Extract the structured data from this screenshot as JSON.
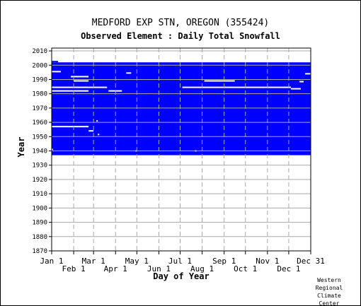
{
  "chart_data": {
    "type": "heatmap",
    "title": "MEDFORD EXP STN, OREGON   (355424)",
    "subtitle": "Observed Element : Daily Total Snowfall",
    "xlabel": "Day of Year",
    "ylabel": "Year",
    "grid": true,
    "ylim": [
      1870,
      2012
    ],
    "xlim": [
      1,
      366
    ],
    "y_ticks": [
      1870,
      1880,
      1890,
      1900,
      1910,
      1920,
      1930,
      1940,
      1950,
      1960,
      1970,
      1980,
      1990,
      2000,
      2010
    ],
    "x_ticks": [
      {
        "label": "Jan 1",
        "day": 1,
        "row": 1
      },
      {
        "label": "Feb 1",
        "day": 32,
        "row": 2
      },
      {
        "label": "Mar 1",
        "day": 60,
        "row": 1
      },
      {
        "label": "Apr 1",
        "day": 91,
        "row": 2
      },
      {
        "label": "May 1",
        "day": 121,
        "row": 1
      },
      {
        "label": "Jun 1",
        "day": 152,
        "row": 2
      },
      {
        "label": "Jul 1",
        "day": 182,
        "row": 1
      },
      {
        "label": "Aug 1",
        "day": 213,
        "row": 2
      },
      {
        "label": "Sep 1",
        "day": 244,
        "row": 1
      },
      {
        "label": "Oct 1",
        "day": 274,
        "row": 2
      },
      {
        "label": "Nov 1",
        "day": 305,
        "row": 1
      },
      {
        "label": "Dec 1",
        "day": 335,
        "row": 2
      },
      {
        "label": "Dec 31",
        "day": 366,
        "row": 1
      }
    ],
    "data_color": "#0000ff",
    "coverage": [
      {
        "start_day": 1,
        "end_day": 366,
        "start_year": 1937,
        "end_year": 2002
      },
      {
        "start_day": 1,
        "end_day": 10,
        "start_year": 2002,
        "end_year": 2003
      }
    ],
    "gaps": [
      {
        "start_day": 1,
        "end_day": 14,
        "year": 1995.5
      },
      {
        "start_day": 28,
        "end_day": 53,
        "year": 1992
      },
      {
        "start_day": 32,
        "end_day": 53,
        "year": 1989
      },
      {
        "start_day": 1,
        "end_day": 53,
        "year": 1984.5
      },
      {
        "start_day": 53,
        "end_day": 79,
        "year": 1984.5
      },
      {
        "start_day": 1,
        "end_day": 53,
        "year": 1982
      },
      {
        "start_day": 81,
        "end_day": 100,
        "year": 1982
      },
      {
        "start_day": 106,
        "end_day": 113,
        "year": 1994.5
      },
      {
        "start_day": 185,
        "end_day": 302,
        "year": 1984.5
      },
      {
        "start_day": 216,
        "end_day": 259,
        "year": 1989
      },
      {
        "start_day": 302,
        "end_day": 338,
        "year": 1984.5
      },
      {
        "start_day": 338,
        "end_day": 352,
        "year": 1983.5
      },
      {
        "start_day": 350,
        "end_day": 356,
        "year": 1988.5
      },
      {
        "start_day": 358,
        "end_day": 366,
        "year": 1994
      },
      {
        "start_day": 1,
        "end_day": 53,
        "year": 1957
      },
      {
        "start_day": 53,
        "end_day": 60,
        "year": 1954
      },
      {
        "start_day": 66,
        "end_day": 68,
        "year": 1951.5
      },
      {
        "start_day": 64,
        "end_day": 66,
        "year": 1961
      },
      {
        "start_day": 1,
        "end_day": 3,
        "year": 1941
      },
      {
        "start_day": 119,
        "end_day": 121,
        "year": 1940
      },
      {
        "start_day": 203,
        "end_day": 205,
        "year": 1940
      }
    ]
  }
}
